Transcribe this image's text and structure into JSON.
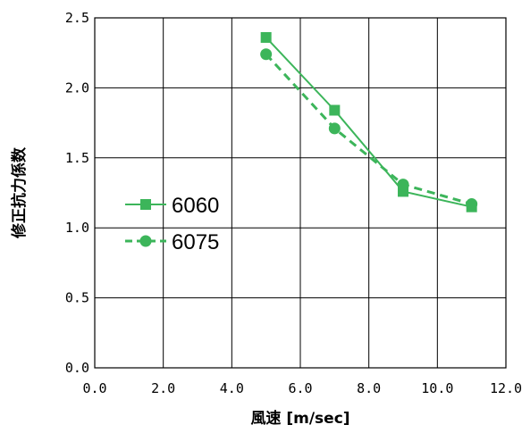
{
  "chart_data": {
    "type": "line",
    "xlabel": "風速 [m/sec]",
    "ylabel": "修正抗力係数",
    "xlim": [
      0,
      12
    ],
    "ylim": [
      0,
      2.5
    ],
    "x_ticks": [
      "0.0",
      "2.0",
      "4.0",
      "6.0",
      "8.0",
      "10.0",
      "12.0"
    ],
    "y_ticks": [
      "0.0",
      "0.5",
      "1.0",
      "1.5",
      "2.0",
      "2.5"
    ],
    "grid": true,
    "legend_position": "left-middle",
    "series": [
      {
        "name": "6060",
        "marker": "square",
        "line": "solid",
        "color": "#3cb55a",
        "points": [
          [
            5,
            2.36
          ],
          [
            7,
            1.84
          ],
          [
            9,
            1.26
          ],
          [
            11,
            1.15
          ]
        ]
      },
      {
        "name": "6075",
        "marker": "circle",
        "line": "dashed",
        "color": "#3cb55a",
        "points": [
          [
            5,
            2.24
          ],
          [
            7,
            1.71
          ],
          [
            9,
            1.31
          ],
          [
            11,
            1.17
          ]
        ]
      }
    ]
  }
}
